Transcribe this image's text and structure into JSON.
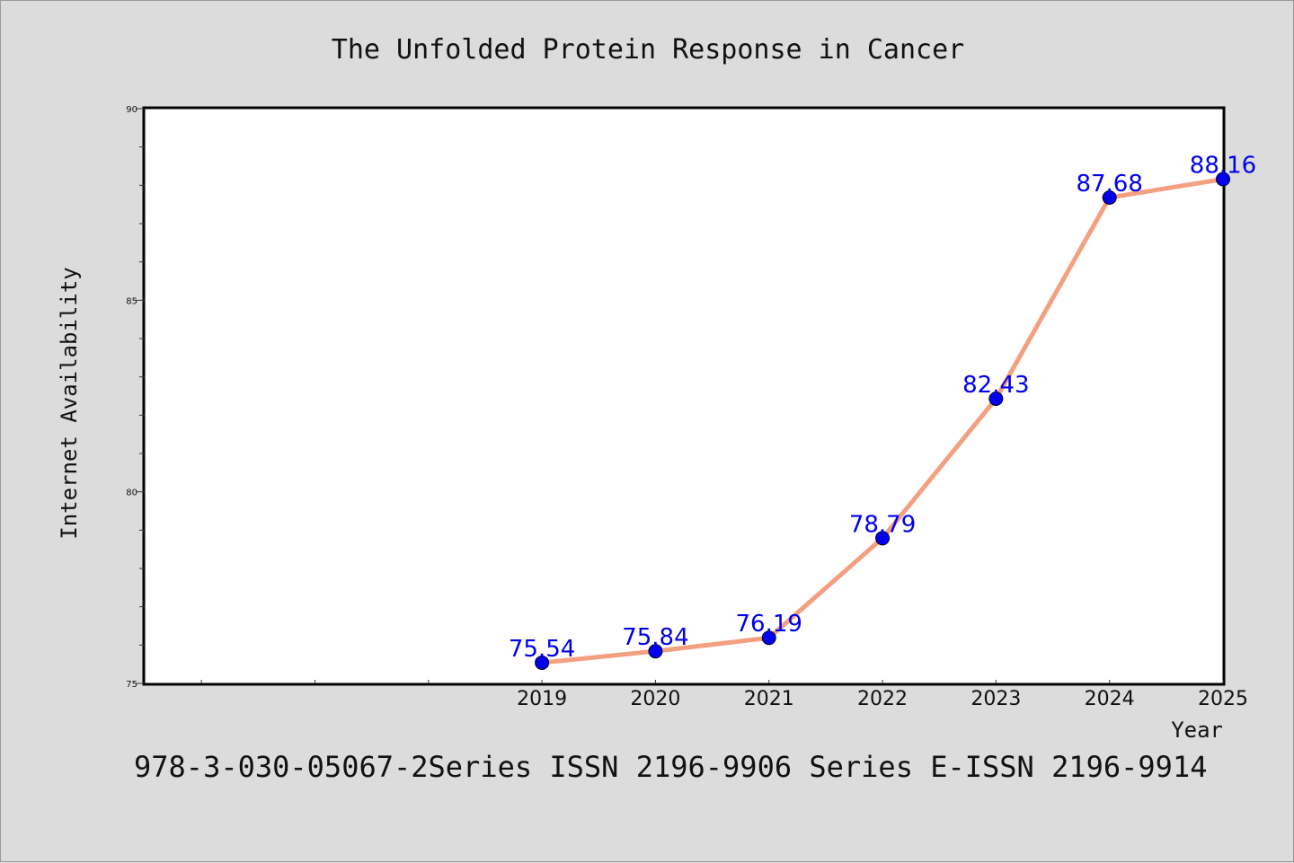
{
  "colors": {
    "background": "#dcdcdc",
    "plot_background": "#ffffff",
    "line": "#f4a080",
    "marker": "#0000ee",
    "data_label": "#0000ee"
  },
  "footer": "978-3-030-05067-2Series ISSN 2196-9906 Series E-ISSN 2196-9914",
  "chart_data": {
    "type": "line",
    "title": "The Unfolded Protein Response in Cancer",
    "xlabel": "Year",
    "ylabel": "Internet Availability",
    "categories": [
      "2019",
      "2020",
      "2021",
      "2022",
      "2023",
      "2024",
      "2025"
    ],
    "series": [
      {
        "values": [
          75.54,
          75.84,
          76.19,
          78.79,
          82.43,
          87.68,
          88.16
        ]
      }
    ],
    "data_labels": [
      "75.54",
      "75.84",
      "76.19",
      "78.79",
      "82.43",
      "87.68",
      "88.16"
    ],
    "ylim": [
      75,
      90
    ],
    "y_ticks": [
      "75",
      "80",
      "85",
      "90"
    ],
    "y_minor_step": 1,
    "x_leading_empty_slots": 3,
    "grid": false,
    "legend": "none"
  }
}
